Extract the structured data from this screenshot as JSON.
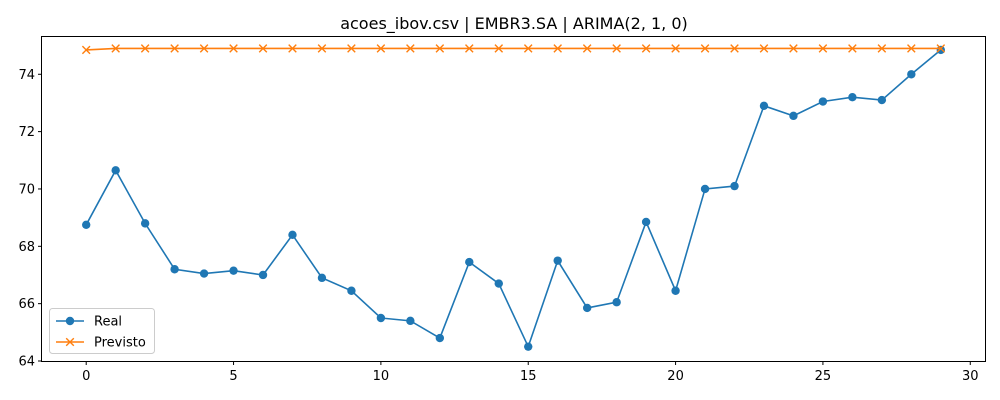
{
  "chart_data": {
    "type": "line",
    "title": "acoes_ibov.csv | EMBR3.SA | ARIMA(2, 1, 0)",
    "xlabel": "",
    "ylabel": "",
    "xlim": [
      -1.5,
      30.5
    ],
    "ylim": [
      64,
      75.3
    ],
    "x_ticks": [
      0,
      5,
      10,
      15,
      20,
      25,
      30
    ],
    "y_ticks": [
      64,
      66,
      68,
      70,
      72,
      74
    ],
    "grid": false,
    "legend_position": "lower-left",
    "x": [
      0,
      1,
      2,
      3,
      4,
      5,
      6,
      7,
      8,
      9,
      10,
      11,
      12,
      13,
      14,
      15,
      16,
      17,
      18,
      19,
      20,
      21,
      22,
      23,
      24,
      25,
      26,
      27,
      28,
      29
    ],
    "series": [
      {
        "name": "Real",
        "color": "#1f77b4",
        "marker": "circle",
        "values": [
          68.75,
          70.65,
          68.8,
          67.2,
          67.05,
          67.15,
          67.0,
          68.4,
          66.9,
          66.45,
          65.5,
          65.4,
          64.8,
          67.45,
          66.7,
          64.5,
          67.5,
          65.85,
          66.05,
          68.85,
          66.45,
          70.0,
          70.1,
          72.9,
          72.55,
          73.05,
          73.2,
          73.1,
          74.0,
          74.85
        ]
      },
      {
        "name": "Previsto",
        "color": "#ff7f0e",
        "marker": "x",
        "values": [
          74.85,
          74.9,
          74.9,
          74.9,
          74.9,
          74.9,
          74.9,
          74.9,
          74.9,
          74.9,
          74.9,
          74.9,
          74.9,
          74.9,
          74.9,
          74.9,
          74.9,
          74.9,
          74.9,
          74.9,
          74.9,
          74.9,
          74.9,
          74.9,
          74.9,
          74.9,
          74.9,
          74.9,
          74.9,
          74.9
        ]
      }
    ]
  }
}
